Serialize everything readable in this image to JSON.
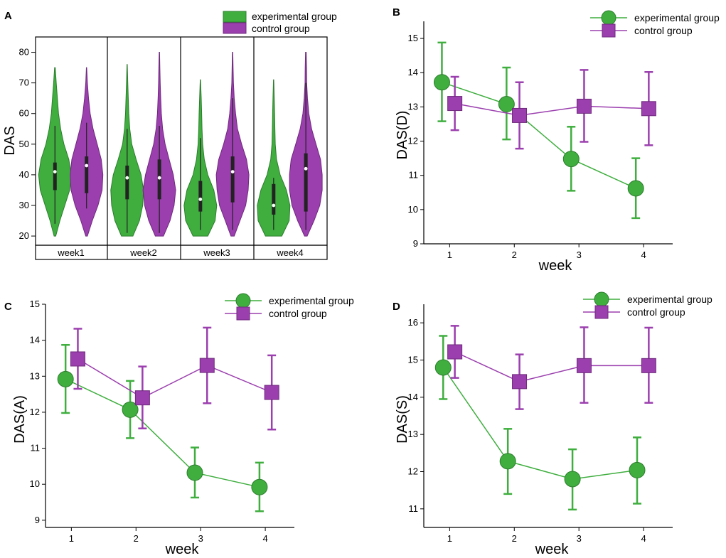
{
  "figure_title": "",
  "colors": {
    "experimental": "#3fae3f",
    "experimental_edge": "#2e7d2e",
    "control": "#9b3fae",
    "control_edge": "#6f2a7d",
    "axis": "#000000"
  },
  "chart_data": [
    {
      "panel": "A",
      "type": "violin",
      "ylabel": "DAS",
      "ylim": [
        17,
        85
      ],
      "yticks": [
        20,
        30,
        40,
        50,
        60,
        70,
        80
      ],
      "categories": [
        "week1",
        "week2",
        "week3",
        "week4"
      ],
      "legend": [
        "experimental group",
        "control group"
      ],
      "series": [
        {
          "name": "experimental group",
          "color_key": "experimental",
          "groups": [
            {
              "min": 20,
              "max": 75,
              "q1": 35,
              "median": 41,
              "q3": 44,
              "whisker_low": 24,
              "whisker_high": 56,
              "density": [
                [
                  20,
                  0.05
                ],
                [
                  25,
                  0.3
                ],
                [
                  30,
                  0.6
                ],
                [
                  35,
                  0.9
                ],
                [
                  40,
                  1.0
                ],
                [
                  45,
                  0.85
                ],
                [
                  50,
                  0.55
                ],
                [
                  55,
                  0.35
                ],
                [
                  60,
                  0.22
                ],
                [
                  65,
                  0.15
                ],
                [
                  70,
                  0.08
                ],
                [
                  75,
                  0.02
                ]
              ]
            },
            {
              "min": 20,
              "max": 76,
              "q1": 32,
              "median": 39,
              "q3": 43,
              "whisker_low": 21,
              "whisker_high": 55,
              "density": [
                [
                  20,
                  0.35
                ],
                [
                  25,
                  0.75
                ],
                [
                  30,
                  0.95
                ],
                [
                  35,
                  1.0
                ],
                [
                  40,
                  0.85
                ],
                [
                  45,
                  0.55
                ],
                [
                  50,
                  0.28
                ],
                [
                  55,
                  0.16
                ],
                [
                  60,
                  0.1
                ],
                [
                  65,
                  0.07
                ],
                [
                  70,
                  0.04
                ],
                [
                  76,
                  0.01
                ]
              ]
            },
            {
              "min": 20,
              "max": 71,
              "q1": 28,
              "median": 32,
              "q3": 38,
              "whisker_low": 22,
              "whisker_high": 52,
              "density": [
                [
                  20,
                  0.45
                ],
                [
                  25,
                  0.9
                ],
                [
                  30,
                  1.0
                ],
                [
                  35,
                  0.82
                ],
                [
                  40,
                  0.45
                ],
                [
                  45,
                  0.24
                ],
                [
                  50,
                  0.14
                ],
                [
                  55,
                  0.1
                ],
                [
                  60,
                  0.08
                ],
                [
                  65,
                  0.05
                ],
                [
                  71,
                  0.01
                ]
              ]
            },
            {
              "min": 20,
              "max": 71,
              "q1": 27,
              "median": 30,
              "q3": 37,
              "whisker_low": 22,
              "whisker_high": 39,
              "density": [
                [
                  20,
                  0.5
                ],
                [
                  25,
                  0.95
                ],
                [
                  30,
                  1.0
                ],
                [
                  35,
                  0.78
                ],
                [
                  40,
                  0.4
                ],
                [
                  45,
                  0.18
                ],
                [
                  50,
                  0.1
                ],
                [
                  55,
                  0.08
                ],
                [
                  60,
                  0.06
                ],
                [
                  65,
                  0.04
                ],
                [
                  71,
                  0.01
                ]
              ]
            }
          ]
        },
        {
          "name": "control group",
          "color_key": "control",
          "groups": [
            {
              "min": 20,
              "max": 75,
              "q1": 34,
              "median": 43,
              "q3": 46,
              "whisker_low": 29,
              "whisker_high": 57,
              "density": [
                [
                  20,
                  0.05
                ],
                [
                  25,
                  0.35
                ],
                [
                  30,
                  0.7
                ],
                [
                  35,
                  0.95
                ],
                [
                  40,
                  1.0
                ],
                [
                  45,
                  0.9
                ],
                [
                  50,
                  0.65
                ],
                [
                  55,
                  0.4
                ],
                [
                  60,
                  0.22
                ],
                [
                  65,
                  0.12
                ],
                [
                  70,
                  0.05
                ],
                [
                  75,
                  0.01
                ]
              ]
            },
            {
              "min": 20,
              "max": 80,
              "q1": 32,
              "median": 39,
              "q3": 45,
              "whisker_low": 21,
              "whisker_high": 56,
              "density": [
                [
                  20,
                  0.25
                ],
                [
                  25,
                  0.65
                ],
                [
                  30,
                  0.9
                ],
                [
                  35,
                  1.0
                ],
                [
                  40,
                  0.85
                ],
                [
                  45,
                  0.6
                ],
                [
                  50,
                  0.35
                ],
                [
                  55,
                  0.2
                ],
                [
                  60,
                  0.12
                ],
                [
                  65,
                  0.08
                ],
                [
                  70,
                  0.05
                ],
                [
                  75,
                  0.03
                ],
                [
                  80,
                  0.01
                ]
              ]
            },
            {
              "min": 20,
              "max": 80,
              "q1": 31,
              "median": 41,
              "q3": 46,
              "whisker_low": 22,
              "whisker_high": 65,
              "density": [
                [
                  20,
                  0.1
                ],
                [
                  25,
                  0.45
                ],
                [
                  30,
                  0.8
                ],
                [
                  35,
                  0.95
                ],
                [
                  40,
                  1.0
                ],
                [
                  45,
                  0.85
                ],
                [
                  50,
                  0.55
                ],
                [
                  55,
                  0.3
                ],
                [
                  60,
                  0.18
                ],
                [
                  65,
                  0.1
                ],
                [
                  70,
                  0.05
                ],
                [
                  75,
                  0.03
                ],
                [
                  80,
                  0.01
                ]
              ]
            },
            {
              "min": 20,
              "max": 80,
              "q1": 28,
              "median": 42,
              "q3": 47,
              "whisker_low": 22,
              "whisker_high": 70,
              "density": [
                [
                  20,
                  0.08
                ],
                [
                  25,
                  0.5
                ],
                [
                  30,
                  0.85
                ],
                [
                  35,
                  1.0
                ],
                [
                  40,
                  1.0
                ],
                [
                  45,
                  0.9
                ],
                [
                  50,
                  0.62
                ],
                [
                  55,
                  0.35
                ],
                [
                  60,
                  0.18
                ],
                [
                  65,
                  0.1
                ],
                [
                  70,
                  0.05
                ],
                [
                  75,
                  0.04
                ],
                [
                  80,
                  0.02
                ]
              ]
            }
          ]
        }
      ]
    },
    {
      "panel": "B",
      "type": "line",
      "xlabel": "week",
      "ylabel": "DAS(D)",
      "x": [
        1,
        2,
        3,
        4
      ],
      "xlim": [
        0.6,
        4.45
      ],
      "ylim": [
        9,
        15.5
      ],
      "yticks": [
        9,
        10,
        11,
        12,
        13,
        14,
        15
      ],
      "xticks": [
        1,
        2,
        3,
        4
      ],
      "legend": [
        "experimental group",
        "control group"
      ],
      "series": [
        {
          "name": "experimental group",
          "color_key": "experimental",
          "marker": "circle",
          "offset": -0.12,
          "values": [
            13.72,
            13.08,
            11.48,
            10.62
          ],
          "err_low": [
            12.58,
            12.05,
            10.55,
            9.75
          ],
          "err_high": [
            14.88,
            14.15,
            12.42,
            11.5
          ]
        },
        {
          "name": "control group",
          "color_key": "control",
          "marker": "square",
          "offset": 0.08,
          "values": [
            13.1,
            12.75,
            13.02,
            12.95
          ],
          "err_low": [
            12.32,
            11.78,
            11.98,
            11.88
          ],
          "err_high": [
            13.88,
            13.72,
            14.08,
            14.02
          ]
        }
      ]
    },
    {
      "panel": "C",
      "type": "line",
      "xlabel": "week",
      "ylabel": "DAS(A)",
      "x": [
        1,
        2,
        3,
        4
      ],
      "xlim": [
        0.6,
        4.45
      ],
      "ylim": [
        8.8,
        15
      ],
      "yticks": [
        9,
        10,
        11,
        12,
        13,
        14,
        15
      ],
      "xticks": [
        1,
        2,
        3,
        4
      ],
      "legend": [
        "experimental group",
        "control group"
      ],
      "series": [
        {
          "name": "experimental group",
          "color_key": "experimental",
          "marker": "circle",
          "offset": -0.09,
          "values": [
            12.92,
            12.07,
            10.32,
            9.92
          ],
          "err_low": [
            11.98,
            11.28,
            9.63,
            9.25
          ],
          "err_high": [
            13.87,
            12.87,
            11.02,
            10.6
          ]
        },
        {
          "name": "control group",
          "color_key": "control",
          "marker": "square",
          "offset": 0.1,
          "values": [
            13.48,
            12.4,
            13.3,
            12.55
          ],
          "err_low": [
            12.65,
            11.55,
            12.25,
            11.52
          ],
          "err_high": [
            14.32,
            13.27,
            14.35,
            13.58
          ]
        }
      ]
    },
    {
      "panel": "D",
      "type": "line",
      "xlabel": "week",
      "ylabel": "DAS(S)",
      "x": [
        1,
        2,
        3,
        4
      ],
      "xlim": [
        0.6,
        4.45
      ],
      "ylim": [
        10.5,
        16.5
      ],
      "yticks": [
        11,
        12,
        13,
        14,
        15,
        16
      ],
      "xticks": [
        1,
        2,
        3,
        4
      ],
      "legend": [
        "experimental group",
        "control group"
      ],
      "series": [
        {
          "name": "experimental group",
          "color_key": "experimental",
          "marker": "circle",
          "offset": -0.1,
          "values": [
            14.8,
            12.28,
            11.8,
            12.04
          ],
          "err_low": [
            13.95,
            11.4,
            10.98,
            11.14
          ],
          "err_high": [
            15.65,
            13.15,
            12.6,
            12.92
          ]
        },
        {
          "name": "control group",
          "color_key": "control",
          "marker": "square",
          "offset": 0.08,
          "values": [
            15.22,
            14.42,
            14.85,
            14.85
          ],
          "err_low": [
            14.52,
            13.68,
            13.85,
            13.85
          ],
          "err_high": [
            15.92,
            15.15,
            15.88,
            15.87
          ]
        }
      ]
    }
  ]
}
